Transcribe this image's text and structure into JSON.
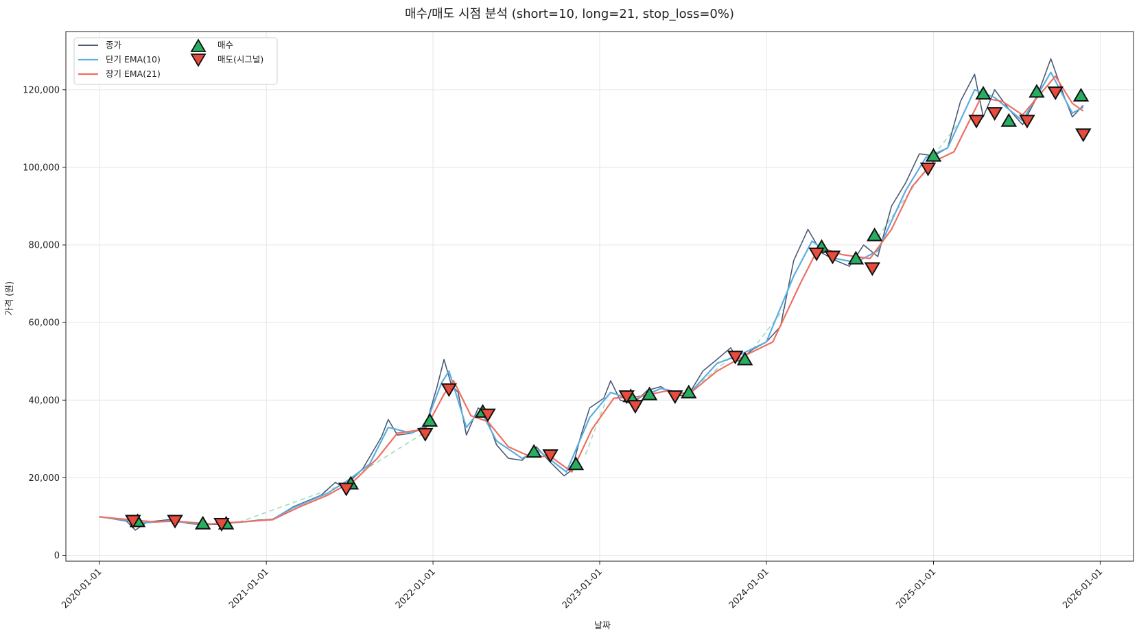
{
  "chart_data": {
    "type": "line",
    "title": "매수/매도 시점 분석 (short=10, long=21, stop_loss=0%)",
    "xlabel": "날짜",
    "ylabel": "가격 (원)",
    "xlim": [
      "2019-10-20",
      "2026-03-15"
    ],
    "ylim": [
      -1500,
      135000
    ],
    "x_ticks": [
      "2020-01-01",
      "2021-01-01",
      "2022-01-01",
      "2023-01-01",
      "2024-01-01",
      "2025-01-01",
      "2026-01-01"
    ],
    "y_ticks": [
      0,
      20000,
      40000,
      60000,
      80000,
      100000,
      120000
    ],
    "y_tick_labels": [
      "0",
      "20,000",
      "40,000",
      "60,000",
      "80,000",
      "100,000",
      "120,000"
    ],
    "grid": true,
    "legend_position": "top-left",
    "colors": {
      "close": "#4a5a75",
      "ema_short": "#5aaee0",
      "ema_long": "#ee6f62",
      "buy": "#27ae60",
      "sell": "#e74c3c",
      "trade_line": "#a8dfc4"
    },
    "series": [
      {
        "name": "종가",
        "key": "close",
        "points": [
          [
            "2020-01-01",
            10000
          ],
          [
            "2020-02-01",
            9400
          ],
          [
            "2020-03-01",
            8800
          ],
          [
            "2020-03-20",
            6500
          ],
          [
            "2020-04-15",
            8600
          ],
          [
            "2020-06-01",
            9200
          ],
          [
            "2020-07-15",
            8200
          ],
          [
            "2020-08-15",
            7900
          ],
          [
            "2020-10-01",
            8100
          ],
          [
            "2020-11-15",
            8700
          ],
          [
            "2020-12-15",
            9100
          ],
          [
            "2021-01-15",
            9300
          ],
          [
            "2021-03-01",
            12500
          ],
          [
            "2021-05-01",
            15500
          ],
          [
            "2021-06-01",
            18800
          ],
          [
            "2021-06-20",
            17500
          ],
          [
            "2021-08-01",
            22500
          ],
          [
            "2021-09-10",
            30500
          ],
          [
            "2021-09-25",
            35000
          ],
          [
            "2021-10-15",
            31000
          ],
          [
            "2021-11-15",
            31500
          ],
          [
            "2021-12-15",
            33000
          ],
          [
            "2022-01-10",
            43500
          ],
          [
            "2022-01-25",
            50500
          ],
          [
            "2022-02-10",
            44000
          ],
          [
            "2022-02-25",
            42000
          ],
          [
            "2022-03-15",
            31000
          ],
          [
            "2022-04-10",
            38000
          ],
          [
            "2022-04-25",
            36500
          ],
          [
            "2022-05-20",
            28500
          ],
          [
            "2022-06-15",
            25000
          ],
          [
            "2022-07-15",
            24500
          ],
          [
            "2022-08-15",
            28000
          ],
          [
            "2022-09-15",
            24000
          ],
          [
            "2022-10-15",
            20500
          ],
          [
            "2022-11-01",
            22000
          ],
          [
            "2022-11-20",
            30500
          ],
          [
            "2022-12-10",
            38000
          ],
          [
            "2023-01-10",
            40500
          ],
          [
            "2023-01-25",
            45000
          ],
          [
            "2023-02-15",
            40000
          ],
          [
            "2023-03-15",
            39000
          ],
          [
            "2023-04-15",
            42500
          ],
          [
            "2023-05-15",
            43500
          ],
          [
            "2023-06-15",
            41000
          ],
          [
            "2023-07-15",
            41500
          ],
          [
            "2023-08-15",
            47500
          ],
          [
            "2023-09-15",
            50500
          ],
          [
            "2023-10-15",
            53500
          ],
          [
            "2023-11-01",
            50000
          ],
          [
            "2023-12-01",
            53000
          ],
          [
            "2024-01-01",
            55000
          ],
          [
            "2024-02-01",
            59000
          ],
          [
            "2024-03-01",
            76000
          ],
          [
            "2024-04-01",
            84000
          ],
          [
            "2024-05-01",
            78000
          ],
          [
            "2024-06-01",
            76000
          ],
          [
            "2024-07-01",
            74500
          ],
          [
            "2024-08-01",
            80000
          ],
          [
            "2024-09-01",
            77000
          ],
          [
            "2024-10-01",
            90000
          ],
          [
            "2024-11-01",
            96000
          ],
          [
            "2024-12-01",
            103500
          ],
          [
            "2025-01-01",
            103000
          ],
          [
            "2025-02-01",
            105000
          ],
          [
            "2025-03-01",
            117000
          ],
          [
            "2025-04-01",
            124000
          ],
          [
            "2025-04-20",
            113000
          ],
          [
            "2025-05-15",
            120000
          ],
          [
            "2025-06-15",
            115000
          ],
          [
            "2025-07-15",
            111000
          ],
          [
            "2025-08-15",
            118000
          ],
          [
            "2025-09-15",
            128000
          ],
          [
            "2025-10-15",
            118000
          ],
          [
            "2025-11-01",
            113000
          ],
          [
            "2025-11-25",
            116000
          ]
        ]
      },
      {
        "name": "단기 EMA(10)",
        "key": "ema_short",
        "points": [
          [
            "2020-01-01",
            9950
          ],
          [
            "2020-03-01",
            9000
          ],
          [
            "2020-04-01",
            8300
          ],
          [
            "2020-06-01",
            8900
          ],
          [
            "2020-08-15",
            8000
          ],
          [
            "2020-11-01",
            8500
          ],
          [
            "2021-01-15",
            9300
          ],
          [
            "2021-03-01",
            12300
          ],
          [
            "2021-05-15",
            16000
          ],
          [
            "2021-07-01",
            19500
          ],
          [
            "2021-08-15",
            23500
          ],
          [
            "2021-09-25",
            33000
          ],
          [
            "2021-11-15",
            31500
          ],
          [
            "2021-12-15",
            33500
          ],
          [
            "2022-01-20",
            44500
          ],
          [
            "2022-02-05",
            47500
          ],
          [
            "2022-03-15",
            33000
          ],
          [
            "2022-04-15",
            37500
          ],
          [
            "2022-05-20",
            29500
          ],
          [
            "2022-07-15",
            25000
          ],
          [
            "2022-08-20",
            27000
          ],
          [
            "2022-10-20",
            21500
          ],
          [
            "2022-12-10",
            35500
          ],
          [
            "2023-01-25",
            42000
          ],
          [
            "2023-03-15",
            40000
          ],
          [
            "2023-05-15",
            43000
          ],
          [
            "2023-07-15",
            41500
          ],
          [
            "2023-09-15",
            49500
          ],
          [
            "2023-11-01",
            51500
          ],
          [
            "2024-01-01",
            55000
          ],
          [
            "2024-03-01",
            72000
          ],
          [
            "2024-04-10",
            81000
          ],
          [
            "2024-06-01",
            76500
          ],
          [
            "2024-07-15",
            75500
          ],
          [
            "2024-09-01",
            78500
          ],
          [
            "2024-11-01",
            94000
          ],
          [
            "2024-12-15",
            102500
          ],
          [
            "2025-02-01",
            105000
          ],
          [
            "2025-04-01",
            120000
          ],
          [
            "2025-05-15",
            118000
          ],
          [
            "2025-07-15",
            112000
          ],
          [
            "2025-09-15",
            124500
          ],
          [
            "2025-11-01",
            114000
          ],
          [
            "2025-11-25",
            115500
          ]
        ]
      },
      {
        "name": "장기 EMA(21)",
        "key": "ema_long",
        "points": [
          [
            "2020-01-01",
            9900
          ],
          [
            "2020-03-15",
            9100
          ],
          [
            "2020-05-01",
            8600
          ],
          [
            "2020-06-15",
            8800
          ],
          [
            "2020-09-01",
            8100
          ],
          [
            "2020-11-15",
            8700
          ],
          [
            "2021-01-15",
            9200
          ],
          [
            "2021-03-15",
            12500
          ],
          [
            "2021-05-15",
            15500
          ],
          [
            "2021-07-15",
            19500
          ],
          [
            "2021-09-01",
            25000
          ],
          [
            "2021-10-15",
            31500
          ],
          [
            "2021-12-15",
            32500
          ],
          [
            "2022-01-25",
            41500
          ],
          [
            "2022-02-15",
            45000
          ],
          [
            "2022-03-25",
            36000
          ],
          [
            "2022-05-01",
            34500
          ],
          [
            "2022-06-15",
            28000
          ],
          [
            "2022-08-01",
            25500
          ],
          [
            "2022-09-15",
            25500
          ],
          [
            "2022-11-01",
            21500
          ],
          [
            "2022-12-15",
            32500
          ],
          [
            "2023-02-01",
            40500
          ],
          [
            "2023-04-01",
            41000
          ],
          [
            "2023-06-01",
            42500
          ],
          [
            "2023-07-15",
            41500
          ],
          [
            "2023-09-15",
            47500
          ],
          [
            "2023-11-15",
            51500
          ],
          [
            "2024-01-15",
            55000
          ],
          [
            "2024-03-15",
            70000
          ],
          [
            "2024-04-25",
            79500
          ],
          [
            "2024-06-15",
            77500
          ],
          [
            "2024-08-15",
            76500
          ],
          [
            "2024-10-01",
            84000
          ],
          [
            "2024-11-15",
            95000
          ],
          [
            "2025-01-01",
            101500
          ],
          [
            "2025-02-15",
            104000
          ],
          [
            "2025-04-15",
            118000
          ],
          [
            "2025-06-01",
            117000
          ],
          [
            "2025-07-15",
            113500
          ],
          [
            "2025-09-25",
            123500
          ],
          [
            "2025-11-01",
            116500
          ],
          [
            "2025-11-25",
            114500
          ]
        ]
      }
    ],
    "trade_lines": [
      [
        [
          "2020-11-01",
          8500
        ],
        [
          "2021-06-01",
          17500
        ]
      ],
      [
        [
          "2021-07-01",
          19500
        ],
        [
          "2022-01-01",
          33000
        ]
      ],
      [
        [
          "2022-12-01",
          26000
        ],
        [
          "2023-01-15",
          40000
        ]
      ],
      [
        [
          "2023-07-15",
          42000
        ],
        [
          "2023-10-15",
          51000
        ]
      ],
      [
        [
          "2023-12-01",
          53000
        ],
        [
          "2024-02-15",
          64500
        ]
      ],
      [
        [
          "2024-09-01",
          82000
        ],
        [
          "2024-12-15",
          99500
        ]
      ],
      [
        [
          "2025-01-01",
          103000
        ],
        [
          "2025-03-01",
          112000
        ]
      ]
    ],
    "markers": {
      "buy": {
        "name": "매수",
        "points": [
          [
            "2020-03-25",
            8800
          ],
          [
            "2020-08-15",
            8200
          ],
          [
            "2020-10-05",
            8200
          ],
          [
            "2021-07-05",
            18500
          ],
          [
            "2021-12-25",
            34700
          ],
          [
            "2022-04-20",
            37000
          ],
          [
            "2022-08-10",
            26700
          ],
          [
            "2022-11-10",
            23500
          ],
          [
            "2023-03-10",
            41000
          ],
          [
            "2023-04-20",
            41500
          ],
          [
            "2023-07-15",
            42000
          ],
          [
            "2023-11-15",
            50500
          ],
          [
            "2024-05-01",
            79500
          ],
          [
            "2024-07-15",
            76500
          ],
          [
            "2024-08-25",
            82500
          ],
          [
            "2025-01-01",
            103000
          ],
          [
            "2025-04-20",
            119000
          ],
          [
            "2025-06-15",
            112000
          ],
          [
            "2025-08-15",
            119500
          ],
          [
            "2025-11-20",
            118500
          ]
        ]
      },
      "sell": {
        "name": "매도(시그널)",
        "points": [
          [
            "2020-03-15",
            8900
          ],
          [
            "2020-06-15",
            8900
          ],
          [
            "2020-09-25",
            8100
          ],
          [
            "2021-06-25",
            17200
          ],
          [
            "2021-12-15",
            31300
          ],
          [
            "2022-02-05",
            42800
          ],
          [
            "2022-05-01",
            36300
          ],
          [
            "2022-09-15",
            25800
          ],
          [
            "2023-03-01",
            41000
          ],
          [
            "2023-03-20",
            38500
          ],
          [
            "2023-06-15",
            41000
          ],
          [
            "2023-10-25",
            51200
          ],
          [
            "2024-04-20",
            77800
          ],
          [
            "2024-05-25",
            77000
          ],
          [
            "2024-08-20",
            74000
          ],
          [
            "2024-12-20",
            99700
          ],
          [
            "2025-04-05",
            112000
          ],
          [
            "2025-05-15",
            114000
          ],
          [
            "2025-07-25",
            112000
          ],
          [
            "2025-09-25",
            119300
          ],
          [
            "2025-11-25",
            108500
          ]
        ]
      }
    }
  }
}
